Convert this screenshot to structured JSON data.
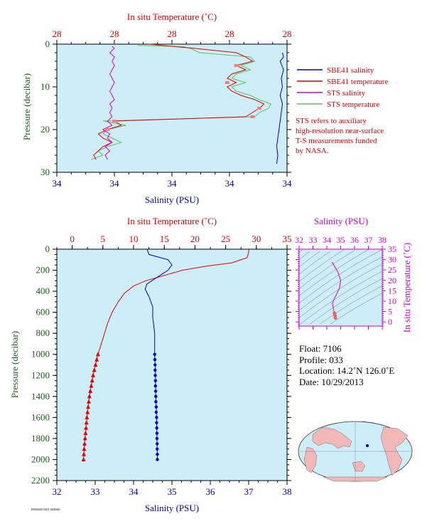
{
  "colors": {
    "plot_bg": "#cdeef9",
    "salinity": "#0000c8",
    "temperature": "#e00000",
    "sts_salinity": "#d400d4",
    "sts_temperature": "#60c060",
    "red_label": "#d40000",
    "blue_label": "#0000aa",
    "pressure_label": "#1f5a1f",
    "magenta_label": "#cc00cc"
  },
  "top_panel": {
    "temp_axis_title": "In situ Temperature (˚C)",
    "sal_axis_title": "Salinity (PSU)",
    "pressure_axis_title": "Pressure (decibar)",
    "legend": [
      {
        "label": "SBE41 salinity",
        "color": "#0000c8"
      },
      {
        "label": "SBE41 temperature",
        "color": "#e00000"
      },
      {
        "label": "STS salinity",
        "color": "#d400d4"
      },
      {
        "label": "STS temperature",
        "color": "#60c060"
      }
    ],
    "note": [
      "STS refers to auxiliary",
      "high-resolution near-surface",
      "T-S measurements funded",
      "by NASA."
    ]
  },
  "bottom_panel": {
    "temp_axis_title": "In situ Temperature (˚C)",
    "sal_axis_title": "Salinity (PSU)",
    "pressure_axis_title": "Pressure (decibar)"
  },
  "ts_panel": {
    "sal_axis_title": "Salinity (PSU)",
    "temp_axis_title": "In situ Temperature (˚C)"
  },
  "float_info": {
    "float": "Float:  7106",
    "profile": "Profile:  033",
    "location": "Location:  14.2˚N  126.0˚E",
    "date": "Date:  10/29/2013"
  },
  "footer_code": "P0000000-0001 0000000",
  "chart_data": [
    {
      "type": "line",
      "name": "Near-surface profile",
      "x_top": {
        "label": "In situ Temperature (˚C)",
        "ticks": [
          "28",
          "28",
          "28",
          "28",
          "28"
        ]
      },
      "x_bottom": {
        "label": "Salinity (PSU)",
        "ticks": [
          "34",
          "34",
          "34",
          "34",
          "34"
        ]
      },
      "y": {
        "label": "Pressure (decibar)",
        "ticks": [
          0,
          10,
          20,
          30
        ],
        "range": [
          0,
          30
        ],
        "inverted": true
      },
      "series": [
        {
          "name": "SBE41 salinity",
          "axis": "norm",
          "points": [
            [
              0.98,
              2
            ],
            [
              0.985,
              3
            ],
            [
              0.97,
              4
            ],
            [
              0.985,
              6
            ],
            [
              0.975,
              8
            ],
            [
              0.98,
              10
            ],
            [
              0.97,
              12
            ],
            [
              0.98,
              14
            ],
            [
              0.975,
              16
            ],
            [
              0.97,
              18
            ],
            [
              0.965,
              20
            ],
            [
              0.96,
              22
            ],
            [
              0.955,
              24
            ],
            [
              0.96,
              26
            ],
            [
              0.955,
              28
            ]
          ]
        },
        {
          "name": "SBE41 temperature",
          "axis": "norm",
          "points": [
            [
              0.4,
              0
            ],
            [
              0.6,
              1
            ],
            [
              0.78,
              2
            ],
            [
              0.82,
              3
            ],
            [
              0.85,
              4
            ],
            [
              0.78,
              5
            ],
            [
              0.82,
              6
            ],
            [
              0.76,
              7
            ],
            [
              0.74,
              8
            ],
            [
              0.78,
              9
            ],
            [
              0.74,
              10
            ],
            [
              0.76,
              11
            ],
            [
              0.8,
              12
            ],
            [
              0.86,
              13
            ],
            [
              0.9,
              14
            ],
            [
              0.88,
              15
            ],
            [
              0.85,
              16
            ],
            [
              0.82,
              17
            ],
            [
              0.25,
              18
            ],
            [
              0.28,
              19
            ],
            [
              0.22,
              20
            ],
            [
              0.18,
              21
            ],
            [
              0.2,
              22
            ],
            [
              0.24,
              23
            ],
            [
              0.2,
              24
            ],
            [
              0.18,
              25
            ],
            [
              0.16,
              26
            ],
            [
              0.17,
              27
            ]
          ]
        },
        {
          "name": "STS salinity",
          "axis": "norm",
          "points": [
            [
              0.24,
              0.5
            ],
            [
              0.25,
              1
            ],
            [
              0.23,
              2
            ],
            [
              0.25,
              3
            ],
            [
              0.24,
              4
            ],
            [
              0.25,
              5
            ],
            [
              0.24,
              6
            ],
            [
              0.23,
              7
            ],
            [
              0.24,
              8
            ],
            [
              0.25,
              9
            ],
            [
              0.24,
              10
            ],
            [
              0.23,
              11
            ],
            [
              0.24,
              12
            ],
            [
              0.25,
              13
            ],
            [
              0.23,
              14
            ],
            [
              0.24,
              15
            ],
            [
              0.23,
              16
            ],
            [
              0.24,
              17
            ],
            [
              0.22,
              18
            ],
            [
              0.24,
              19
            ],
            [
              0.2,
              20
            ],
            [
              0.23,
              21
            ],
            [
              0.22,
              22
            ],
            [
              0.24,
              23
            ],
            [
              0.21,
              24
            ],
            [
              0.23,
              25
            ],
            [
              0.21,
              26
            ],
            [
              0.22,
              27
            ]
          ]
        },
        {
          "name": "STS temperature",
          "axis": "norm",
          "points": [
            [
              0.35,
              0.3
            ],
            [
              0.55,
              0.6
            ],
            [
              0.58,
              1
            ],
            [
              0.6,
              1.5
            ],
            [
              0.62,
              2
            ],
            [
              0.84,
              3
            ],
            [
              0.86,
              4
            ],
            [
              0.8,
              5
            ],
            [
              0.84,
              6
            ],
            [
              0.78,
              7
            ],
            [
              0.76,
              8
            ],
            [
              0.82,
              9
            ],
            [
              0.76,
              10
            ],
            [
              0.78,
              11
            ],
            [
              0.84,
              12
            ],
            [
              0.88,
              13
            ],
            [
              0.93,
              14
            ],
            [
              0.92,
              15
            ],
            [
              0.88,
              16
            ],
            [
              0.86,
              17
            ],
            [
              0.2,
              18
            ],
            [
              0.3,
              19
            ],
            [
              0.22,
              20
            ],
            [
              0.2,
              21
            ],
            [
              0.24,
              22
            ],
            [
              0.28,
              23
            ],
            [
              0.22,
              24
            ],
            [
              0.18,
              25
            ],
            [
              0.2,
              26
            ],
            [
              0.15,
              27
            ]
          ]
        }
      ]
    },
    {
      "type": "line",
      "name": "Full-depth profile",
      "x_top": {
        "label": "In situ Temperature (˚C)",
        "ticks": [
          0,
          5,
          10,
          15,
          20,
          25,
          30,
          35
        ],
        "range": [
          -2.5,
          35
        ]
      },
      "x_bottom": {
        "label": "Salinity (PSU)",
        "ticks": [
          32,
          33,
          34,
          35,
          36,
          37,
          38
        ],
        "range": [
          32,
          38
        ]
      },
      "y": {
        "label": "Pressure (decibar)",
        "ticks": [
          0,
          200,
          400,
          600,
          800,
          1000,
          1200,
          1400,
          1600,
          1800,
          2000,
          2200
        ],
        "range": [
          0,
          2200
        ],
        "inverted": true
      },
      "series": [
        {
          "name": "SBE41 temperature",
          "unit": "C",
          "points": [
            [
              28.8,
              0
            ],
            [
              28.7,
              40
            ],
            [
              28.5,
              80
            ],
            [
              26,
              130
            ],
            [
              22,
              160
            ],
            [
              18,
              200
            ],
            [
              15,
              250
            ],
            [
              12,
              300
            ],
            [
              10,
              350
            ],
            [
              8.5,
              420
            ],
            [
              7.5,
              500
            ],
            [
              6.5,
              600
            ],
            [
              5.8,
              700
            ],
            [
              5,
              850
            ],
            [
              4.2,
              1000
            ],
            [
              3.8,
              1100
            ],
            [
              3.4,
              1200
            ],
            [
              3.1,
              1300
            ],
            [
              2.8,
              1400
            ],
            [
              2.6,
              1500
            ],
            [
              2.4,
              1600
            ],
            [
              2.25,
              1700
            ],
            [
              2.1,
              1800
            ],
            [
              1.95,
              1900
            ],
            [
              1.85,
              2000
            ]
          ]
        },
        {
          "name": "SBE41 temperature markers",
          "unit": "C",
          "marker": "triangle",
          "points": [
            [
              4.2,
              1000
            ],
            [
              4.0,
              1050
            ],
            [
              3.8,
              1100
            ],
            [
              3.6,
              1150
            ],
            [
              3.4,
              1200
            ],
            [
              3.25,
              1250
            ],
            [
              3.1,
              1300
            ],
            [
              2.95,
              1350
            ],
            [
              2.8,
              1400
            ],
            [
              2.7,
              1450
            ],
            [
              2.6,
              1500
            ],
            [
              2.5,
              1550
            ],
            [
              2.4,
              1600
            ],
            [
              2.32,
              1650
            ],
            [
              2.25,
              1700
            ],
            [
              2.17,
              1750
            ],
            [
              2.1,
              1800
            ],
            [
              2.02,
              1850
            ],
            [
              1.95,
              1900
            ],
            [
              1.9,
              1950
            ],
            [
              1.85,
              2000
            ]
          ]
        },
        {
          "name": "SBE41 salinity",
          "unit": "PSU",
          "points": [
            [
              34.35,
              0
            ],
            [
              34.4,
              50
            ],
            [
              34.9,
              100
            ],
            [
              35.0,
              150
            ],
            [
              34.9,
              200
            ],
            [
              34.6,
              270
            ],
            [
              34.35,
              330
            ],
            [
              34.3,
              380
            ],
            [
              34.4,
              450
            ],
            [
              34.5,
              550
            ],
            [
              34.5,
              650
            ],
            [
              34.55,
              800
            ],
            [
              34.55,
              1000
            ],
            [
              34.57,
              1200
            ],
            [
              34.58,
              1400
            ],
            [
              34.6,
              1600
            ],
            [
              34.61,
              1800
            ],
            [
              34.62,
              2000
            ]
          ]
        },
        {
          "name": "SBE41 salinity markers",
          "unit": "PSU",
          "marker": "circle",
          "points": [
            [
              34.55,
              1000
            ],
            [
              34.555,
              1050
            ],
            [
              34.56,
              1100
            ],
            [
              34.56,
              1150
            ],
            [
              34.565,
              1200
            ],
            [
              34.57,
              1250
            ],
            [
              34.57,
              1300
            ],
            [
              34.575,
              1350
            ],
            [
              34.58,
              1400
            ],
            [
              34.58,
              1450
            ],
            [
              34.59,
              1500
            ],
            [
              34.59,
              1550
            ],
            [
              34.6,
              1600
            ],
            [
              34.6,
              1650
            ],
            [
              34.605,
              1700
            ],
            [
              34.61,
              1750
            ],
            [
              34.61,
              1800
            ],
            [
              34.615,
              1850
            ],
            [
              34.615,
              1900
            ],
            [
              34.62,
              1950
            ],
            [
              34.62,
              2000
            ]
          ]
        }
      ]
    },
    {
      "type": "scatter",
      "name": "T-S diagram",
      "x": {
        "label": "Salinity (PSU)",
        "ticks": [
          32,
          33,
          34,
          35,
          36,
          37,
          38
        ],
        "range": [
          32,
          38
        ]
      },
      "y": {
        "label": "In situ Temperature (˚C)",
        "ticks": [
          0,
          5,
          10,
          15,
          20,
          25,
          30,
          35
        ],
        "range": [
          -2,
          35
        ]
      },
      "series": [
        {
          "name": "T-S curve",
          "points": [
            [
              34.35,
              28.8
            ],
            [
              34.4,
              28.5
            ],
            [
              34.8,
              24
            ],
            [
              35.0,
              20
            ],
            [
              34.9,
              16
            ],
            [
              34.6,
              12
            ],
            [
              34.4,
              9
            ],
            [
              34.45,
              7
            ],
            [
              34.5,
              5.5
            ],
            [
              34.55,
              4.2
            ],
            [
              34.6,
              3
            ],
            [
              34.62,
              1.9
            ]
          ]
        }
      ]
    }
  ]
}
